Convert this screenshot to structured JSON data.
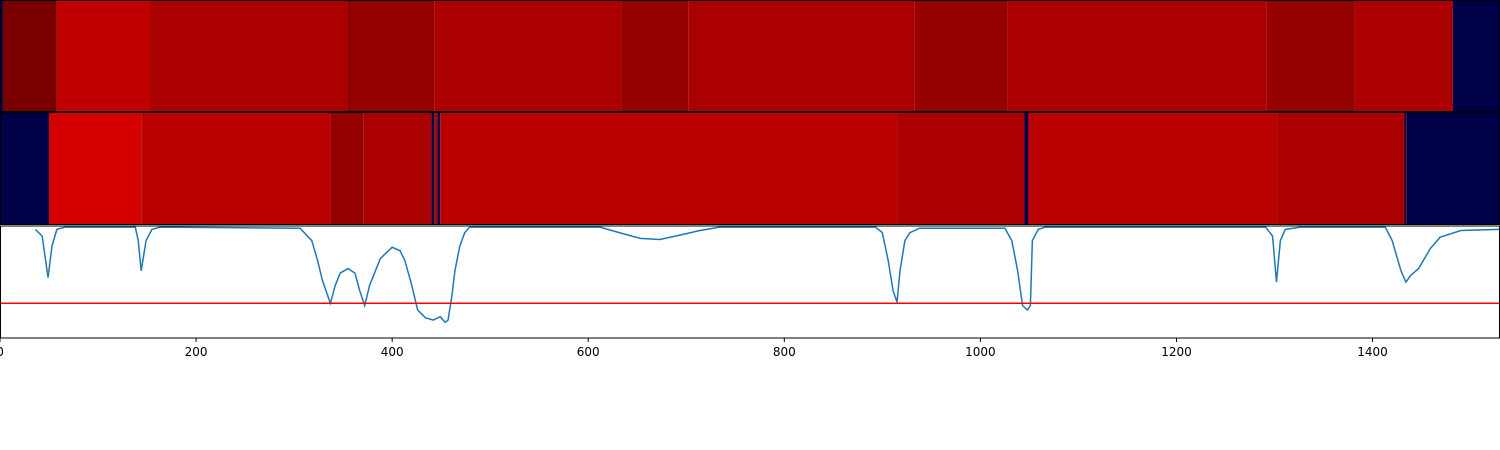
{
  "chart_data": [
    {
      "type": "strip",
      "xlim": [
        0,
        1530
      ],
      "edges": [
        0,
        3,
        58,
        153,
        354,
        443,
        634,
        702,
        933,
        1028,
        1292,
        1382,
        1482,
        1530
      ],
      "colors": [
        "#000048",
        "#7a0000",
        "#c00000",
        "#aa0000",
        "#940000",
        "#aa0000",
        "#940000",
        "#aa0000",
        "#940000",
        "#aa0000",
        "#940000",
        "#aa0000",
        "#000048"
      ]
    },
    {
      "type": "strip",
      "xlim": [
        0,
        1530
      ],
      "edges": [
        0,
        50,
        144,
        337,
        371,
        440,
        443,
        446,
        449,
        915,
        1045,
        1049,
        1303,
        1432,
        1435,
        1530
      ],
      "colors": [
        "#000048",
        "#d40000",
        "#bb0000",
        "#940000",
        "#aa0000",
        "#000048",
        "#aa0000",
        "#000048",
        "#bb0000",
        "#aa0000",
        "#000048",
        "#bb0000",
        "#aa0000",
        "#3a0030",
        "#000048"
      ]
    },
    {
      "type": "line",
      "xlim": [
        0,
        1530
      ],
      "ylim": [
        0,
        1
      ],
      "color": "#1f77b4",
      "xticks": [
        0,
        200,
        400,
        600,
        800,
        1000,
        1200,
        1400
      ],
      "hline": 0.31,
      "hline_color": "#ff0000",
      "x": [
        36,
        43,
        49,
        53,
        58,
        66,
        138,
        141,
        144,
        149,
        155,
        163,
        306,
        318,
        324,
        329,
        337,
        342,
        347,
        355,
        362,
        367,
        372,
        377,
        388,
        400,
        408,
        413,
        420,
        426,
        434,
        442,
        449,
        454,
        457,
        461,
        464,
        469,
        474,
        479,
        612,
        632,
        653,
        673,
        694,
        714,
        734,
        893,
        900,
        906,
        911,
        915,
        918,
        923,
        928,
        938,
        1025,
        1032,
        1038,
        1043,
        1048,
        1051,
        1053,
        1059,
        1066,
        1291,
        1298,
        1302,
        1306,
        1311,
        1327,
        1413,
        1420,
        1429,
        1434,
        1439,
        1447,
        1459,
        1469,
        1490,
        1530
      ],
      "values": [
        0.97,
        0.91,
        0.54,
        0.82,
        0.97,
        0.99,
        0.99,
        0.87,
        0.6,
        0.87,
        0.97,
        0.99,
        0.98,
        0.87,
        0.69,
        0.51,
        0.31,
        0.47,
        0.58,
        0.62,
        0.58,
        0.42,
        0.29,
        0.47,
        0.71,
        0.81,
        0.78,
        0.69,
        0.47,
        0.25,
        0.18,
        0.16,
        0.19,
        0.14,
        0.16,
        0.38,
        0.6,
        0.82,
        0.94,
        0.99,
        0.99,
        0.94,
        0.89,
        0.88,
        0.92,
        0.96,
        0.99,
        0.99,
        0.94,
        0.69,
        0.42,
        0.32,
        0.6,
        0.87,
        0.94,
        0.98,
        0.98,
        0.87,
        0.6,
        0.29,
        0.25,
        0.29,
        0.87,
        0.97,
        0.99,
        0.99,
        0.91,
        0.5,
        0.87,
        0.97,
        0.99,
        0.99,
        0.87,
        0.6,
        0.5,
        0.56,
        0.62,
        0.8,
        0.9,
        0.96,
        0.97
      ]
    }
  ]
}
